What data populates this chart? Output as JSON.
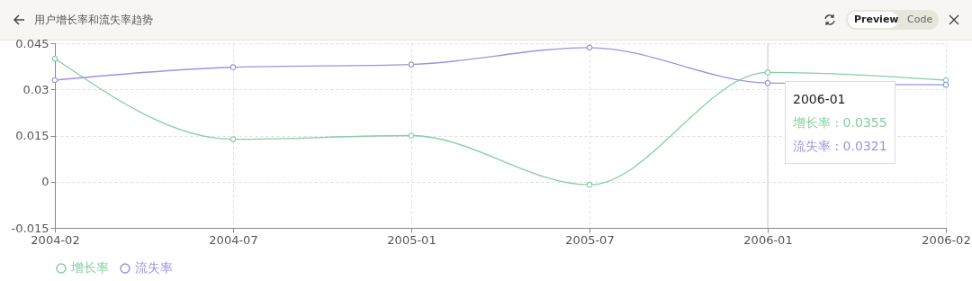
{
  "chart_data": {
    "type": "line",
    "title": "用户增长率和流失率趋势",
    "categories": [
      "2004-02",
      "2004-07",
      "2005-01",
      "2005-07",
      "2006-01",
      "2006-02"
    ],
    "series": [
      {
        "name": "增长率",
        "color": "#86cfa0",
        "values": [
          0.04,
          0.0138,
          0.015,
          -0.001,
          0.0355,
          0.033
        ]
      },
      {
        "name": "流失率",
        "color": "#9b94e0",
        "values": [
          0.033,
          0.0372,
          0.0381,
          0.0436,
          0.0321,
          0.0315
        ]
      }
    ],
    "ylim": [
      -0.015,
      0.045
    ],
    "yticks": [
      -0.015,
      0,
      0.015,
      0.03,
      0.045
    ],
    "grid": true,
    "legend": "bottom",
    "marker": "circle",
    "line_style": "solid",
    "ref_lines": [
      {
        "axis": "x",
        "value": "2006-01",
        "color": "#cccccc"
      }
    ],
    "annotations": [
      "2006-01",
      "增长率 : 0.0355",
      "流失率 : 0.0321",
      "Preview",
      "Code"
    ]
  }
}
